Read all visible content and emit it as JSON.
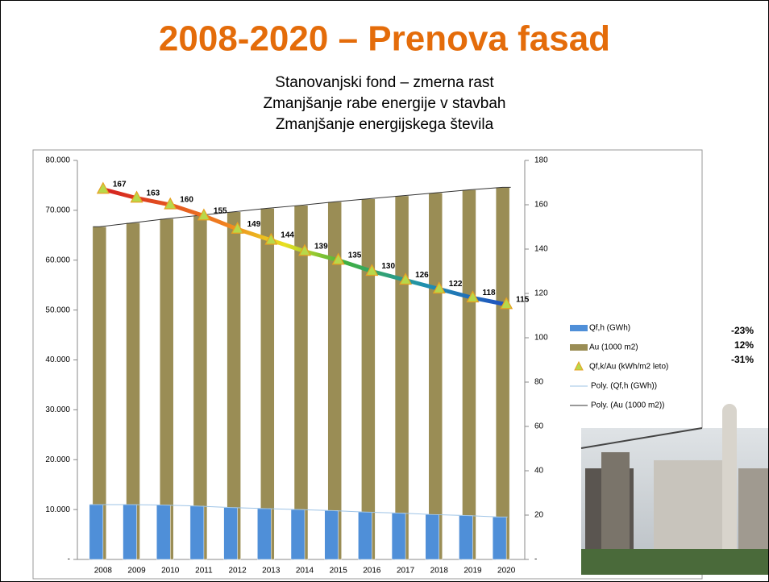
{
  "chart_data": {
    "type": "bar",
    "title": "2008-2020 – Prenova fasad",
    "subtitle": [
      "Stanovanjski fond – zmerna rast",
      "Zmanjšanje rabe energije v stavbah",
      "Zmanjšanje energijskega števila"
    ],
    "categories": [
      "2008",
      "2009",
      "2010",
      "2011",
      "2012",
      "2013",
      "2014",
      "2015",
      "2016",
      "2017",
      "2018",
      "2019",
      "2020"
    ],
    "series": [
      {
        "name": "Qf,h (GWh)",
        "color": "#4f8fd8",
        "values": [
          11000,
          11000,
          10900,
          10700,
          10400,
          10200,
          10000,
          9800,
          9500,
          9300,
          9000,
          8800,
          8500
        ]
      },
      {
        "name": "Au (1000 m2)",
        "color": "#9a8d55",
        "values": [
          66700,
          67500,
          68300,
          69000,
          69700,
          70400,
          71000,
          71700,
          72300,
          72900,
          73500,
          74100,
          74600
        ]
      },
      {
        "name": "Qf,k/Au (kWh/m2 leto)",
        "type": "line",
        "axis": "y2",
        "color": "#e02020",
        "values": [
          167,
          163,
          160,
          155,
          149,
          144,
          139,
          135,
          130,
          126,
          122,
          118,
          115
        ]
      }
    ],
    "trendlines": [
      {
        "name": "Poly. (Qf,h (GWh))",
        "series": 0,
        "color": "#9dc3e6"
      },
      {
        "name": "Poly. (Au (1000 m2))",
        "series": 1,
        "color": "#333333"
      }
    ],
    "annotations": [
      "-23%",
      "12%",
      "-31%"
    ],
    "ylim": [
      0,
      80000
    ],
    "yticks": [
      {
        "value": 0,
        "label": "-"
      },
      {
        "value": 10000,
        "label": "10.000"
      },
      {
        "value": 20000,
        "label": "20.000"
      },
      {
        "value": 30000,
        "label": "30.000"
      },
      {
        "value": 40000,
        "label": "40.000"
      },
      {
        "value": 50000,
        "label": "50.000"
      },
      {
        "value": 60000,
        "label": "60.000"
      },
      {
        "value": 70000,
        "label": "70.000"
      },
      {
        "value": 80000,
        "label": "80.000"
      }
    ],
    "y2lim": [
      0,
      180
    ],
    "y2ticks": [
      {
        "value": 0,
        "label": "-"
      },
      20,
      40,
      60,
      80,
      100,
      120,
      140,
      160,
      180
    ]
  }
}
